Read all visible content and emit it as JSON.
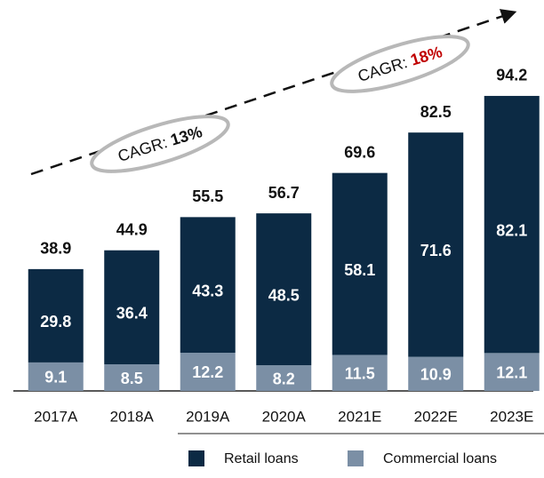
{
  "chart_data": {
    "type": "stacked_bar",
    "categories": [
      "2017A",
      "2018A",
      "2019A",
      "2020A",
      "2021E",
      "2022E",
      "2023E"
    ],
    "series": [
      {
        "name": "Commercial loans",
        "color": "#7b8fa5",
        "values": [
          9.1,
          8.5,
          12.2,
          8.2,
          11.5,
          10.9,
          12.1
        ]
      },
      {
        "name": "Retail loans",
        "color": "#0c2a44",
        "values": [
          29.8,
          36.4,
          43.3,
          48.5,
          58.1,
          71.6,
          82.1
        ]
      }
    ],
    "totals": [
      38.9,
      44.9,
      55.5,
      56.7,
      69.6,
      82.5,
      94.2
    ],
    "ylim": [
      0,
      100
    ],
    "annotations": [
      {
        "prefix": "CAGR:",
        "rate": "13%",
        "color": "#111111"
      },
      {
        "prefix": "CAGR:",
        "rate": "18%",
        "color": "#c00000"
      }
    ]
  }
}
